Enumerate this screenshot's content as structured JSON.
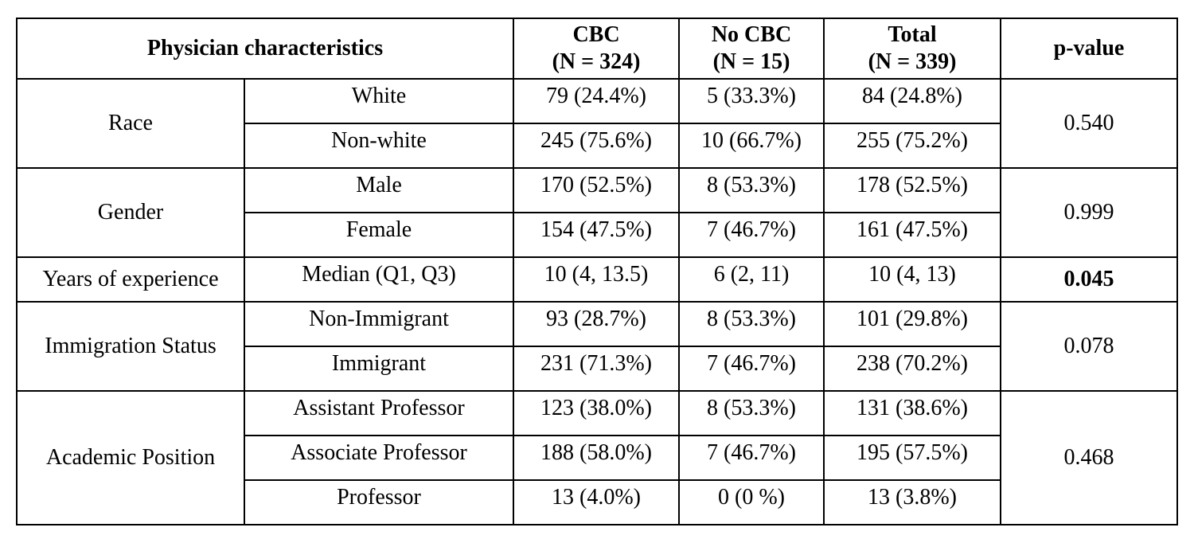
{
  "header": {
    "characteristics": "Physician characteristics",
    "cbc_title": "CBC",
    "cbc_n": "(N = 324)",
    "nocbc_title": "No CBC",
    "nocbc_n": "(N = 15)",
    "total_title": "Total",
    "total_n": "(N = 339)",
    "pvalue": "p-value"
  },
  "groups": [
    {
      "label": "Race",
      "pvalue": "0.540",
      "pvalue_bold": false,
      "rows": [
        {
          "sub": "White",
          "cbc": "79 (24.4%)",
          "nocbc": "5 (33.3%)",
          "total": "84 (24.8%)"
        },
        {
          "sub": "Non-white",
          "cbc": "245 (75.6%)",
          "nocbc": "10 (66.7%)",
          "total": "255 (75.2%)"
        }
      ]
    },
    {
      "label": "Gender",
      "pvalue": "0.999",
      "pvalue_bold": false,
      "rows": [
        {
          "sub": "Male",
          "cbc": "170 (52.5%)",
          "nocbc": "8 (53.3%)",
          "total": "178 (52.5%)"
        },
        {
          "sub": "Female",
          "cbc": "154 (47.5%)",
          "nocbc": "7 (46.7%)",
          "total": "161 (47.5%)"
        }
      ]
    },
    {
      "label": "Years of experience",
      "pvalue": "0.045",
      "pvalue_bold": true,
      "rows": [
        {
          "sub": "Median (Q1, Q3)",
          "cbc": "10 (4, 13.5)",
          "nocbc": "6 (2, 11)",
          "total": "10 (4, 13)"
        }
      ]
    },
    {
      "label": "Immigration Status",
      "pvalue": "0.078",
      "pvalue_bold": false,
      "rows": [
        {
          "sub": "Non-Immigrant",
          "cbc": "93 (28.7%)",
          "nocbc": "8 (53.3%)",
          "total": "101 (29.8%)"
        },
        {
          "sub": "Immigrant",
          "cbc": "231 (71.3%)",
          "nocbc": "7 (46.7%)",
          "total": "238 (70.2%)"
        }
      ]
    },
    {
      "label": "Academic Position",
      "pvalue": "0.468",
      "pvalue_bold": false,
      "rows": [
        {
          "sub": "Assistant Professor",
          "cbc": "123 (38.0%)",
          "nocbc": "8 (53.3%)",
          "total": "131 (38.6%)"
        },
        {
          "sub": "Associate Professor",
          "cbc": "188 (58.0%)",
          "nocbc": "7 (46.7%)",
          "total": "195 (57.5%)"
        },
        {
          "sub": "Professor",
          "cbc": "13 (4.0%)",
          "nocbc": "0 (0 %)",
          "total": "13 (3.8%)"
        }
      ]
    }
  ]
}
